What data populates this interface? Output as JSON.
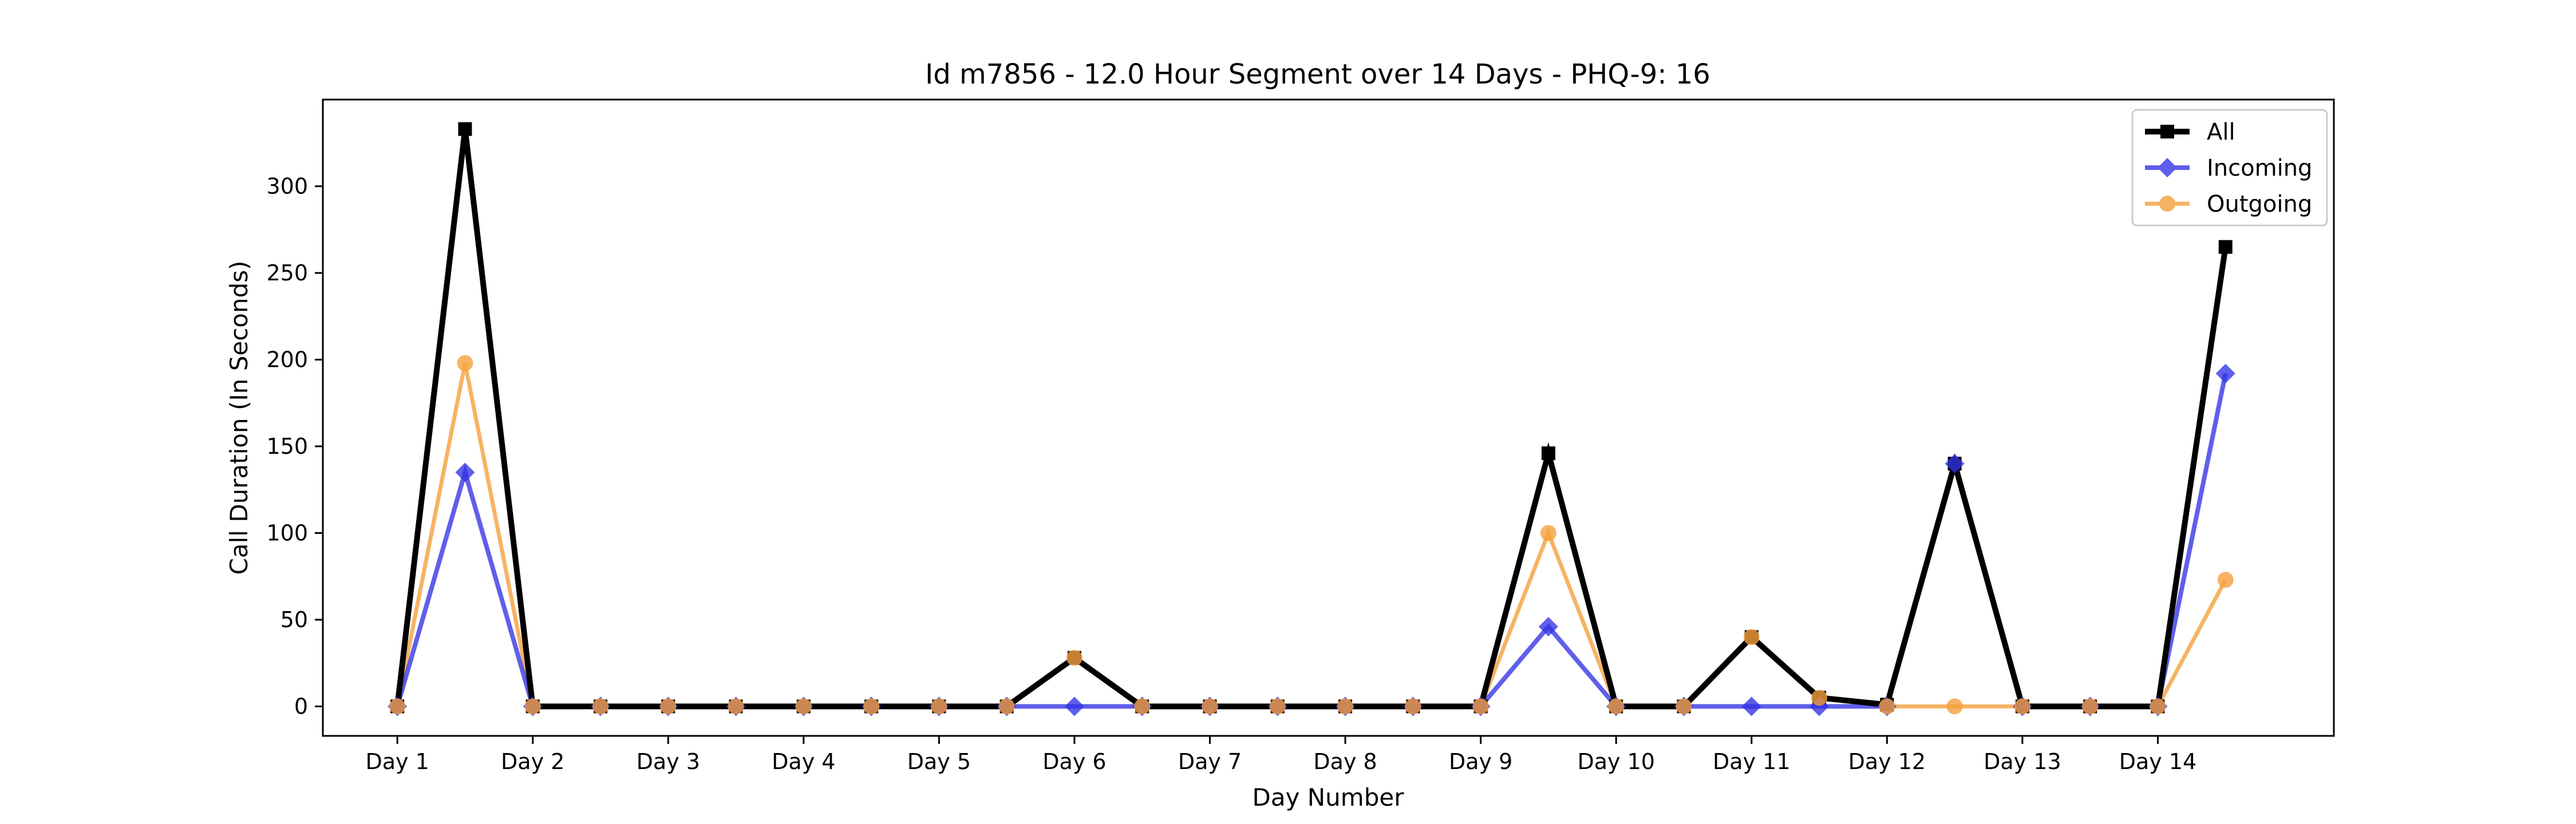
{
  "chart_data": {
    "type": "line",
    "title": "Id m7856 - 12.0 Hour Segment over 14 Days - PHQ-9: 16",
    "xlabel": "Day Number",
    "ylabel": "Call Duration (In Seconds)",
    "x_tick_labels": [
      "Day 1",
      "Day 2",
      "Day 3",
      "Day 4",
      "Day 5",
      "Day 6",
      "Day 7",
      "Day 8",
      "Day 9",
      "Day 10",
      "Day 11",
      "Day 12",
      "Day 13",
      "Day 14"
    ],
    "y_ticks": [
      0,
      50,
      100,
      150,
      200,
      250,
      300
    ],
    "ylim": [
      -17,
      350
    ],
    "xlim": [
      0.45,
      15.3
    ],
    "grid": false,
    "legend_position": "top-right",
    "x": [
      1,
      1.5,
      2,
      2.5,
      3,
      3.5,
      4,
      4.5,
      5,
      5.5,
      6,
      6.5,
      7,
      7.5,
      8,
      8.5,
      9,
      9.5,
      10,
      10.5,
      11,
      11.5,
      12,
      12.5,
      13,
      13.5,
      14,
      14.5
    ],
    "series": [
      {
        "name": "Outgoing",
        "color": "#f5a03c",
        "marker": "circle",
        "values": [
          0,
          198,
          0,
          0,
          0,
          0,
          0,
          0,
          0,
          0,
          28,
          0,
          0,
          0,
          0,
          0,
          0,
          100,
          0,
          0,
          40,
          5,
          0,
          0,
          0,
          0,
          0,
          73
        ]
      },
      {
        "name": "Incoming",
        "color": "#3232e6",
        "marker": "diamond",
        "values": [
          0,
          135,
          0,
          0,
          0,
          0,
          0,
          0,
          0,
          0,
          0,
          0,
          0,
          0,
          0,
          0,
          0,
          46,
          0,
          0,
          0,
          0,
          0,
          140,
          0,
          0,
          0,
          192
        ]
      },
      {
        "name": "All",
        "color": "#000000",
        "marker": "square",
        "values": [
          0,
          333,
          0,
          0,
          0,
          0,
          0,
          0,
          0,
          0,
          28,
          0,
          0,
          0,
          0,
          0,
          0,
          146,
          0,
          0,
          40,
          5,
          1,
          140,
          0,
          0,
          0,
          265
        ]
      }
    ],
    "legend_order": [
      "All",
      "Incoming",
      "Outgoing"
    ]
  }
}
